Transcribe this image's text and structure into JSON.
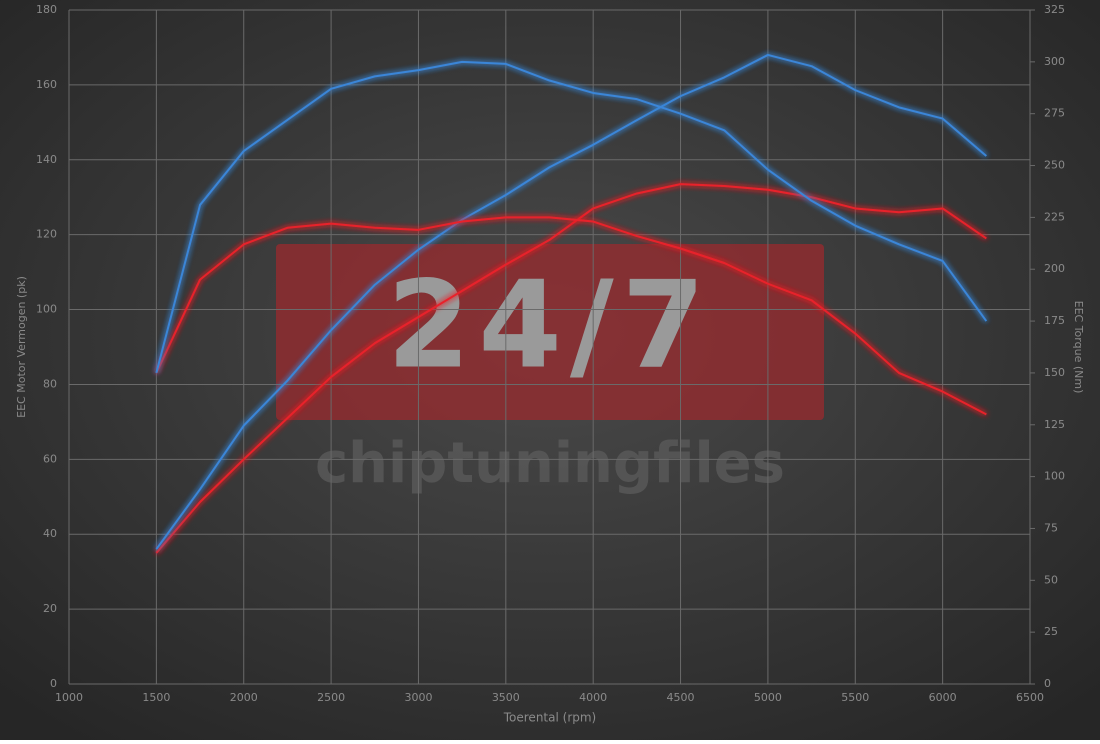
{
  "chart_data": {
    "type": "line",
    "watermark_title": "24/7",
    "watermark_subtitle": "chiptuningfiles",
    "xlabel": "Toerental (rpm)",
    "ylabel": "EEC Motor Vermogen (pk)",
    "y2label": "EEC Torque (Nm)",
    "x": [
      1500,
      1750,
      2000,
      2250,
      2500,
      2750,
      3000,
      3250,
      3500,
      3750,
      4000,
      4250,
      4500,
      4750,
      5000,
      5250,
      5500,
      5750,
      6000,
      6250
    ],
    "series": [
      {
        "color": "#e8242c",
        "values": [
          35,
          48.6,
          60,
          71,
          82,
          91,
          98,
          105,
          112,
          118.6,
          127,
          131,
          133.5,
          133,
          132,
          130,
          127,
          126,
          127,
          119
        ]
      },
      {
        "color": "#3a86d8",
        "values": [
          36,
          52,
          69,
          81,
          94.5,
          106.6,
          116,
          124,
          130.6,
          138,
          144,
          150.6,
          157,
          162,
          168,
          165,
          158.6,
          154,
          151,
          141
        ]
      },
      {
        "color": "#e8242c",
        "axis": "y2",
        "values": [
          150,
          195,
          212,
          220,
          222,
          220,
          219,
          223,
          225,
          225,
          223,
          216,
          210,
          203,
          193,
          185,
          169,
          150,
          141,
          130
        ]
      },
      {
        "color": "#3a86d8",
        "axis": "y2",
        "values": [
          150,
          231,
          257,
          272,
          287,
          293,
          296,
          300,
          299,
          291,
          285,
          282,
          275,
          267,
          248,
          233,
          221,
          212,
          204,
          175
        ]
      }
    ],
    "xlim": [
      1000,
      6500
    ],
    "xticks": [
      1000,
      1500,
      2000,
      2500,
      3000,
      3500,
      4000,
      4500,
      5000,
      5500,
      6000,
      6500
    ],
    "ylim": [
      0,
      180
    ],
    "yticks": [
      0,
      20,
      40,
      60,
      80,
      100,
      120,
      140,
      160,
      180
    ],
    "y2lim": [
      0,
      325
    ],
    "y2ticks": [
      0,
      25,
      50,
      75,
      100,
      125,
      150,
      175,
      200,
      225,
      250,
      275,
      300,
      325
    ],
    "grid": true
  }
}
